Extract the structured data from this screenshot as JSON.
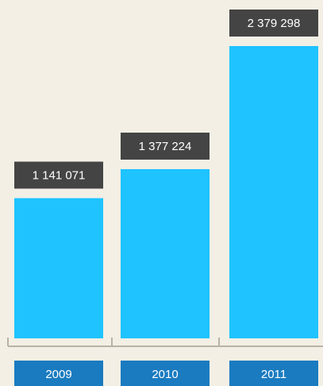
{
  "chart_data": {
    "type": "bar",
    "categories": [
      "2009",
      "2010",
      "2011"
    ],
    "values": [
      1141071,
      1377224,
      2379298
    ],
    "value_labels": [
      "1 141 071",
      "1 377 224",
      "2 379 298"
    ],
    "title": "",
    "xlabel": "",
    "ylabel": "",
    "ylim": [
      0,
      2500000
    ],
    "grid": false,
    "legend": "none"
  },
  "colors": {
    "background": "#f3efe5",
    "bar": "#1ec3ff",
    "label_box": "#444444",
    "category_box": "#1a7bc0",
    "baseline": "#b9b3a6"
  }
}
